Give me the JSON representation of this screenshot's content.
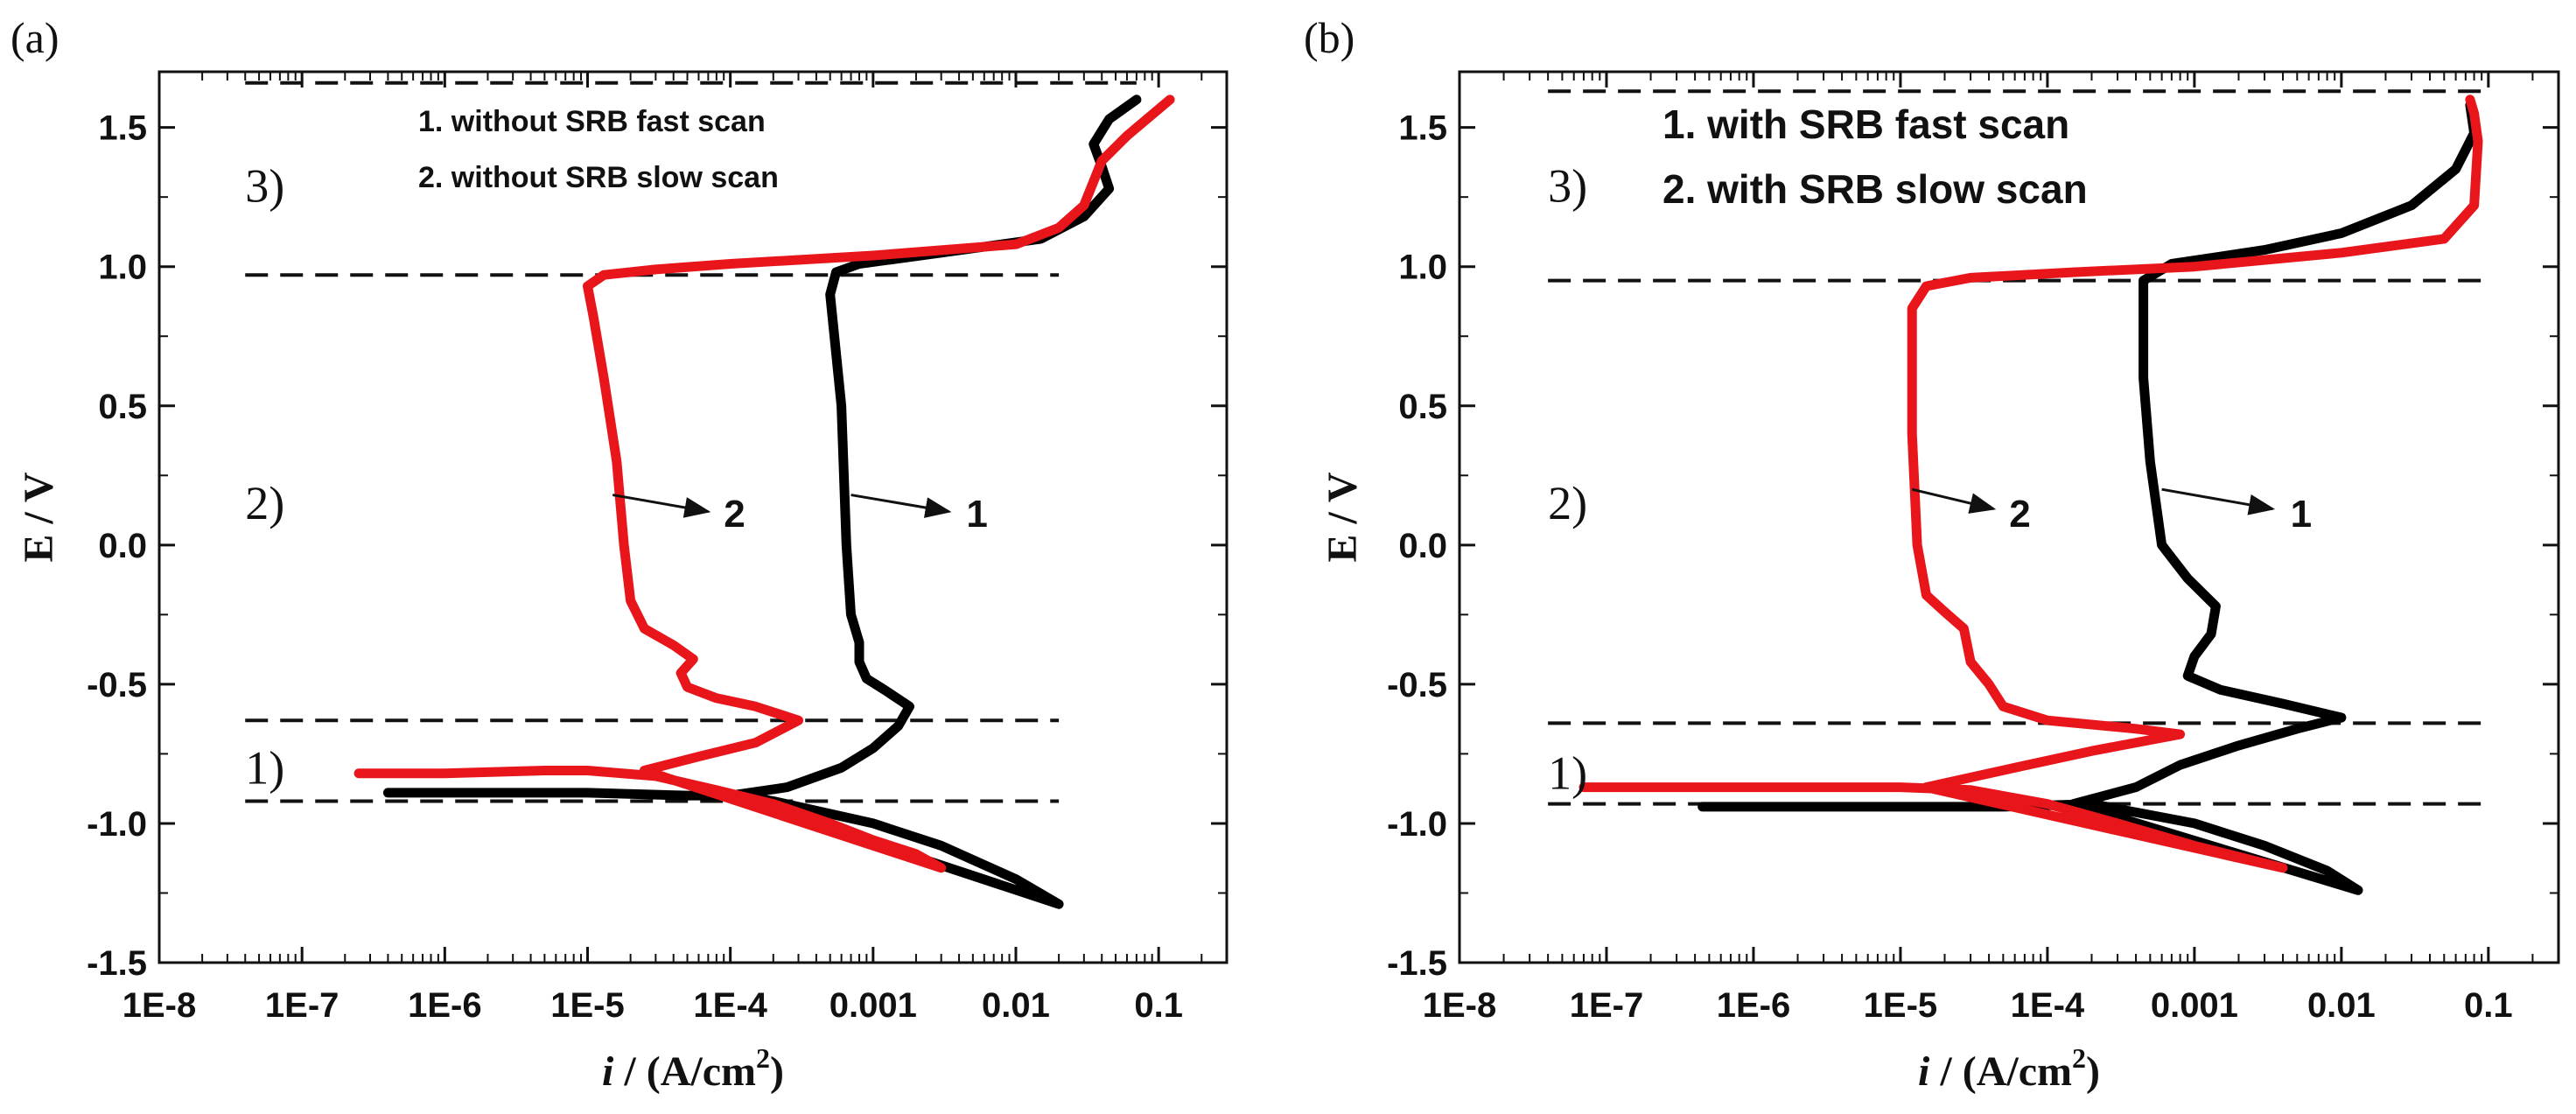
{
  "chart_data": [
    {
      "type": "line",
      "panel_label": "(a)",
      "xlabel_italic": "i",
      "xlabel_rest": " / (A/cm",
      "xlabel_sup": "2",
      "xlabel_close": ")",
      "ylabel": "E / V",
      "xscale": "log",
      "xlim": [
        1e-08,
        0.3
      ],
      "ylim": [
        -1.5,
        1.7
      ],
      "x_ticks": [
        {
          "value": 1e-08,
          "label": "1E-8"
        },
        {
          "value": 1e-07,
          "label": "1E-7"
        },
        {
          "value": 1e-06,
          "label": "1E-6"
        },
        {
          "value": 1e-05,
          "label": "1E-5"
        },
        {
          "value": 0.0001,
          "label": "1E-4"
        },
        {
          "value": 0.001,
          "label": "0.001"
        },
        {
          "value": 0.01,
          "label": "0.01"
        },
        {
          "value": 0.1,
          "label": "0.1"
        }
      ],
      "y_ticks": [
        {
          "value": 1.5,
          "label": "1.5"
        },
        {
          "value": 1.0,
          "label": "1.0"
        },
        {
          "value": 0.5,
          "label": "0.5"
        },
        {
          "value": 0.0,
          "label": "0.0"
        },
        {
          "value": -0.5,
          "label": "-0.5"
        },
        {
          "value": -1.0,
          "label": "-1.0"
        },
        {
          "value": -1.5,
          "label": "-1.5"
        }
      ],
      "legend_entries": [
        "1.   without SRB  fast  scan",
        "2.   without SRB  slow  scan"
      ],
      "regions": [
        {
          "label": "3)",
          "x": 4e-08,
          "y": 1.29
        },
        {
          "label": "2)",
          "x": 4e-08,
          "y": 0.15
        },
        {
          "label": "1)",
          "x": 4e-08,
          "y": -0.8
        }
      ],
      "hlines": [
        {
          "y": 1.66,
          "x_from": 4e-08,
          "x_to": 0.07
        },
        {
          "y": 0.97,
          "x_from": 4e-08,
          "x_to": 0.02
        },
        {
          "y": -0.63,
          "x_from": 4e-08,
          "x_to": 0.02
        },
        {
          "y": -0.92,
          "x_from": 4e-08,
          "x_to": 0.02
        }
      ],
      "annotations": [
        {
          "text": "2",
          "x_text": 9e-05,
          "y_text": 0.11,
          "x_from": 1.5e-05,
          "y_from": 0.18,
          "x_to": 7e-05,
          "y_to": 0.12
        },
        {
          "text": "1",
          "x_text": 0.0045,
          "y_text": 0.11,
          "x_from": 0.0007,
          "y_from": 0.18,
          "x_to": 0.0034,
          "y_to": 0.12
        }
      ],
      "series": [
        {
          "name": "1. without SRB fast scan",
          "color": "#000000",
          "points": [
            [
              4e-07,
              -0.89
            ],
            [
              2e-06,
              -0.89
            ],
            [
              1e-05,
              -0.89
            ],
            [
              5e-05,
              -0.9
            ],
            [
              0.00012,
              -0.9
            ],
            [
              0.0002,
              -0.92
            ],
            [
              0.001,
              -1.0
            ],
            [
              0.003,
              -1.08
            ],
            [
              0.01,
              -1.2
            ],
            [
              0.02,
              -1.29
            ],
            [
              0.0001,
              -0.9
            ],
            [
              0.00025,
              -0.87
            ],
            [
              0.0006,
              -0.8
            ],
            [
              0.001,
              -0.73
            ],
            [
              0.0015,
              -0.65
            ],
            [
              0.0018,
              -0.58
            ],
            [
              0.0012,
              -0.52
            ],
            [
              0.0009,
              -0.48
            ],
            [
              0.0008,
              -0.42
            ],
            [
              0.0008,
              -0.35
            ],
            [
              0.0007,
              -0.25
            ],
            [
              0.00065,
              0.0
            ],
            [
              0.0006,
              0.5
            ],
            [
              0.0005,
              0.9
            ],
            [
              0.00055,
              0.98
            ],
            [
              0.0008,
              1.01
            ],
            [
              0.003,
              1.05
            ],
            [
              0.015,
              1.1
            ],
            [
              0.03,
              1.18
            ],
            [
              0.045,
              1.28
            ],
            [
              0.04,
              1.36
            ],
            [
              0.035,
              1.44
            ],
            [
              0.045,
              1.53
            ],
            [
              0.07,
              1.6
            ]
          ]
        },
        {
          "name": "2. without SRB slow scan",
          "color": "#e8161b",
          "points": [
            [
              2.5e-07,
              -0.82
            ],
            [
              1e-06,
              -0.82
            ],
            [
              5e-06,
              -0.81
            ],
            [
              1e-05,
              -0.81
            ],
            [
              3e-05,
              -0.83
            ],
            [
              8e-05,
              -0.88
            ],
            [
              0.0002,
              -0.93
            ],
            [
              0.0005,
              -1.0
            ],
            [
              0.001,
              -1.06
            ],
            [
              0.002,
              -1.11
            ],
            [
              0.003,
              -1.16
            ],
            [
              2.5e-05,
              -0.81
            ],
            [
              6e-05,
              -0.76
            ],
            [
              0.00015,
              -0.71
            ],
            [
              0.0003,
              -0.63
            ],
            [
              0.00015,
              -0.58
            ],
            [
              8e-05,
              -0.55
            ],
            [
              5e-05,
              -0.51
            ],
            [
              4.5e-05,
              -0.46
            ],
            [
              5.5e-05,
              -0.41
            ],
            [
              4e-05,
              -0.36
            ],
            [
              2.5e-05,
              -0.3
            ],
            [
              2e-05,
              -0.2
            ],
            [
              1.8e-05,
              0.0
            ],
            [
              1.6e-05,
              0.3
            ],
            [
              1.3e-05,
              0.6
            ],
            [
              1.1e-05,
              0.82
            ],
            [
              1e-05,
              0.93
            ],
            [
              1.3e-05,
              0.97
            ],
            [
              3e-05,
              0.99
            ],
            [
              0.0001,
              1.01
            ],
            [
              0.001,
              1.04
            ],
            [
              0.01,
              1.08
            ],
            [
              0.02,
              1.14
            ],
            [
              0.03,
              1.22
            ],
            [
              0.04,
              1.38
            ],
            [
              0.06,
              1.47
            ],
            [
              0.12,
              1.6
            ]
          ]
        }
      ]
    },
    {
      "type": "line",
      "panel_label": "(b)",
      "xlabel_italic": "i",
      "xlabel_rest": " / (A/cm",
      "xlabel_sup": "2",
      "xlabel_close": ")",
      "ylabel": "E / V",
      "xscale": "log",
      "xlim": [
        1e-08,
        0.3
      ],
      "ylim": [
        -1.5,
        1.7
      ],
      "x_ticks": [
        {
          "value": 1e-08,
          "label": "1E-8"
        },
        {
          "value": 1e-07,
          "label": "1E-7"
        },
        {
          "value": 1e-06,
          "label": "1E-6"
        },
        {
          "value": 1e-05,
          "label": "1E-5"
        },
        {
          "value": 0.0001,
          "label": "1E-4"
        },
        {
          "value": 0.001,
          "label": "0.001"
        },
        {
          "value": 0.01,
          "label": "0.01"
        },
        {
          "value": 0.1,
          "label": "0.1"
        }
      ],
      "y_ticks": [
        {
          "value": 1.5,
          "label": "1.5"
        },
        {
          "value": 1.0,
          "label": "1.0"
        },
        {
          "value": 0.5,
          "label": "0.5"
        },
        {
          "value": 0.0,
          "label": "0.0"
        },
        {
          "value": -0.5,
          "label": "-0.5"
        },
        {
          "value": -1.0,
          "label": "-1.0"
        },
        {
          "value": -1.5,
          "label": "-1.5"
        }
      ],
      "legend_entries": [
        "1.   with SRB  fast  scan",
        "2.   with SRB  slow  scan"
      ],
      "regions": [
        {
          "label": "3)",
          "x": 4e-08,
          "y": 1.29
        },
        {
          "label": "2)",
          "x": 4e-08,
          "y": 0.15
        },
        {
          "label": "1)",
          "x": 4e-08,
          "y": -0.82
        }
      ],
      "hlines": [
        {
          "y": 1.63,
          "x_from": 4e-08,
          "x_to": 0.09
        },
        {
          "y": 0.95,
          "x_from": 4e-08,
          "x_to": 0.09
        },
        {
          "y": -0.64,
          "x_from": 4e-08,
          "x_to": 0.09
        },
        {
          "y": -0.93,
          "x_from": 4e-08,
          "x_to": 0.09
        }
      ],
      "annotations": [
        {
          "text": "2",
          "x_text": 5.5e-05,
          "y_text": 0.11,
          "x_from": 1.2e-05,
          "y_from": 0.2,
          "x_to": 4.3e-05,
          "y_to": 0.13
        },
        {
          "text": "1",
          "x_text": 0.0045,
          "y_text": 0.11,
          "x_from": 0.0006,
          "y_from": 0.2,
          "x_to": 0.0034,
          "y_to": 0.13
        }
      ],
      "series": [
        {
          "name": "1. with SRB fast scan",
          "color": "#000000",
          "points": [
            [
              4.5e-07,
              -0.94
            ],
            [
              2e-06,
              -0.94
            ],
            [
              1e-05,
              -0.94
            ],
            [
              5e-05,
              -0.94
            ],
            [
              0.0002,
              -0.93
            ],
            [
              0.001,
              -1.0
            ],
            [
              0.003,
              -1.08
            ],
            [
              0.008,
              -1.17
            ],
            [
              0.013,
              -1.24
            ],
            [
              0.00015,
              -0.93
            ],
            [
              0.0004,
              -0.87
            ],
            [
              0.0008,
              -0.79
            ],
            [
              0.002,
              -0.72
            ],
            [
              0.005,
              -0.66
            ],
            [
              0.01,
              -0.62
            ],
            [
              0.004,
              -0.57
            ],
            [
              0.0015,
              -0.52
            ],
            [
              0.0009,
              -0.47
            ],
            [
              0.001,
              -0.4
            ],
            [
              0.0013,
              -0.32
            ],
            [
              0.0014,
              -0.22
            ],
            [
              0.0009,
              -0.12
            ],
            [
              0.0006,
              0.0
            ],
            [
              0.0005,
              0.3
            ],
            [
              0.00045,
              0.6
            ],
            [
              0.00045,
              0.95
            ],
            [
              0.0007,
              1.01
            ],
            [
              0.003,
              1.06
            ],
            [
              0.01,
              1.12
            ],
            [
              0.03,
              1.22
            ],
            [
              0.06,
              1.35
            ],
            [
              0.08,
              1.48
            ],
            [
              0.075,
              1.58
            ]
          ]
        },
        {
          "name": "2. with SRB slow scan",
          "color": "#e8161b",
          "points": [
            [
              7e-08,
              -0.87
            ],
            [
              5e-07,
              -0.87
            ],
            [
              3e-06,
              -0.87
            ],
            [
              1e-05,
              -0.87
            ],
            [
              3e-05,
              -0.88
            ],
            [
              0.0001,
              -0.93
            ],
            [
              0.0003,
              -1.0
            ],
            [
              0.001,
              -1.08
            ],
            [
              0.004,
              -1.16
            ],
            [
              1.5e-05,
              -0.87
            ],
            [
              6e-05,
              -0.8
            ],
            [
              0.0002,
              -0.74
            ],
            [
              0.0008,
              -0.68
            ],
            [
              0.0004,
              -0.66
            ],
            [
              0.0001,
              -0.63
            ],
            [
              5e-05,
              -0.58
            ],
            [
              4e-05,
              -0.5
            ],
            [
              3e-05,
              -0.42
            ],
            [
              2.7e-05,
              -0.3
            ],
            [
              2e-05,
              -0.24
            ],
            [
              1.5e-05,
              -0.18
            ],
            [
              1.3e-05,
              0.0
            ],
            [
              1.2e-05,
              0.4
            ],
            [
              1.2e-05,
              0.85
            ],
            [
              1.5e-05,
              0.93
            ],
            [
              3e-05,
              0.96
            ],
            [
              0.00015,
              0.98
            ],
            [
              0.001,
              1.0
            ],
            [
              0.01,
              1.05
            ],
            [
              0.05,
              1.1
            ],
            [
              0.08,
              1.22
            ],
            [
              0.085,
              1.45
            ],
            [
              0.08,
              1.55
            ],
            [
              0.075,
              1.6
            ]
          ]
        }
      ]
    }
  ]
}
